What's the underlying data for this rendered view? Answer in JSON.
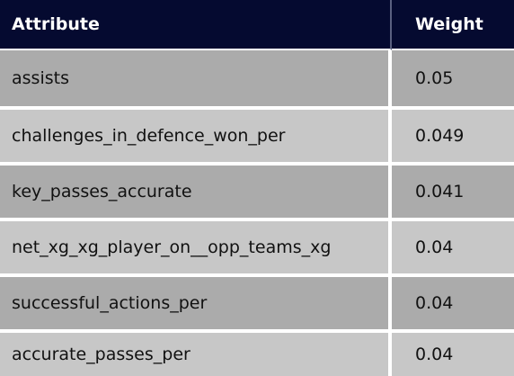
{
  "table": {
    "headers": {
      "attribute": "Attribute",
      "weight": "Weight"
    },
    "rows": [
      {
        "attribute": "assists",
        "weight": "0.05"
      },
      {
        "attribute": "challenges_in_defence_won_per",
        "weight": "0.049"
      },
      {
        "attribute": "key_passes_accurate",
        "weight": "0.041"
      },
      {
        "attribute": "net_xg_xg_player_on__opp_teams_xg",
        "weight": "0.04"
      },
      {
        "attribute": "successful_actions_per",
        "weight": "0.04"
      },
      {
        "attribute": "accurate_passes_per",
        "weight": "0.04"
      }
    ]
  },
  "colors": {
    "header_bg": "#050a30",
    "row_dark": "#ababab",
    "row_light": "#c7c7c7"
  }
}
